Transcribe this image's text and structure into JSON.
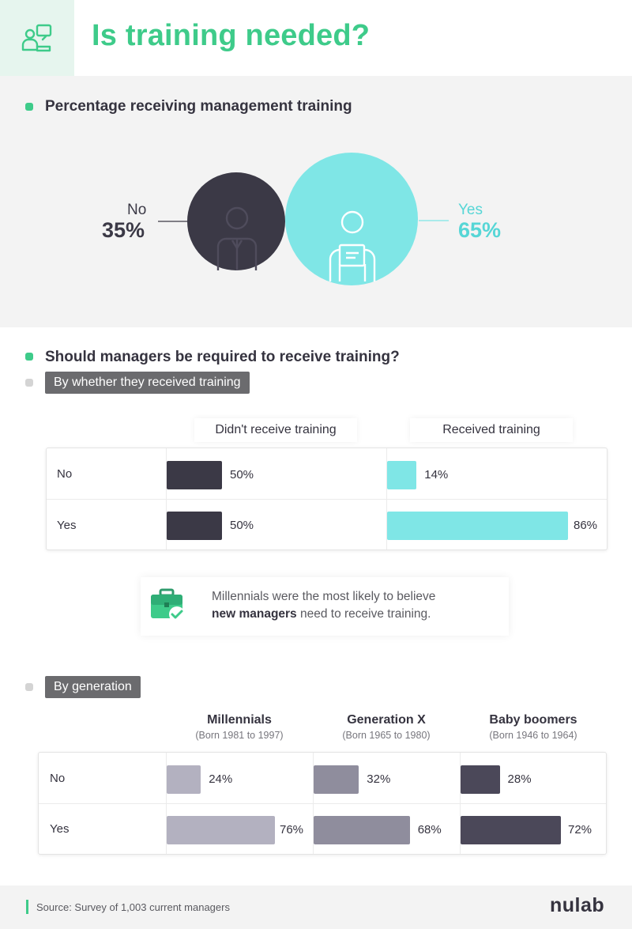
{
  "header": {
    "title": "Is training needed?",
    "icon": "people-board-icon"
  },
  "section1": {
    "heading": "Percentage receiving management training",
    "no_label": "No",
    "no_pct": "35%",
    "yes_label": "Yes",
    "yes_pct": "65%"
  },
  "section2": {
    "heading": "Should managers be required to receive training?",
    "sub1": "By whether they received training",
    "sub2": "By generation"
  },
  "callout": {
    "line1": "Millennials were the most likely to believe",
    "line2_bold": "new managers",
    "line2_rest": " need to receive training.",
    "icon": "briefcase-check-icon"
  },
  "footer": {
    "source": "Source: Survey of 1,003 current managers",
    "logo": "nulab"
  },
  "colors": {
    "accent": "#3ecb8a",
    "dark": "#3b3946",
    "teal": "#7fe6e6",
    "millennial": "#b3b1c0",
    "genx": "#8f8d9d",
    "boomer": "#4b4859"
  },
  "chart_data": [
    {
      "type": "pie",
      "title": "Percentage receiving management training",
      "categories": [
        "No",
        "Yes"
      ],
      "values": [
        35,
        65
      ]
    },
    {
      "type": "bar",
      "title": "By whether they received training",
      "categories": [
        "No",
        "Yes"
      ],
      "xlim": [
        0,
        100
      ],
      "series": [
        {
          "name": "Didn't receive training",
          "values": [
            50,
            50
          ],
          "labels": [
            "50%",
            "50%"
          ]
        },
        {
          "name": "Received training",
          "values": [
            14,
            86
          ],
          "labels": [
            "14%",
            "86%"
          ]
        }
      ]
    },
    {
      "type": "bar",
      "title": "By generation",
      "categories": [
        "No",
        "Yes"
      ],
      "xlim": [
        0,
        100
      ],
      "series": [
        {
          "name": "Millennials",
          "subtitle": "(Born 1981 to 1997)",
          "values": [
            24,
            76
          ],
          "labels": [
            "24%",
            "76%"
          ]
        },
        {
          "name": "Generation X",
          "subtitle": "(Born 1965 to 1980)",
          "values": [
            32,
            68
          ],
          "labels": [
            "32%",
            "68%"
          ]
        },
        {
          "name": "Baby boomers",
          "subtitle": "(Born 1946 to 1964)",
          "values": [
            28,
            72
          ],
          "labels": [
            "28%",
            "72%"
          ]
        }
      ]
    }
  ]
}
